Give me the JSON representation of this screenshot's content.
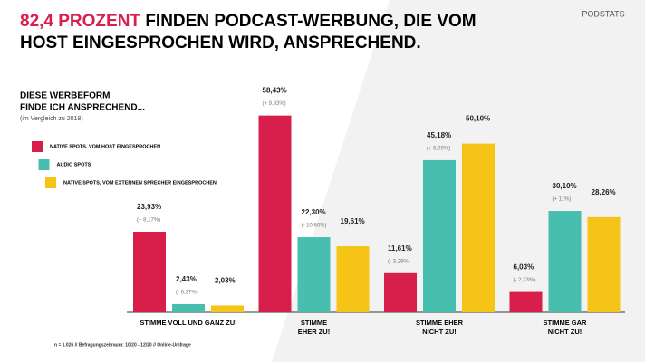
{
  "chart_data": {
    "type": "bar",
    "title_highlight": "82,4 PROZENT",
    "title": [
      "FINDEN PODCAST-WERBUNG, DIE VOM",
      "HOST EINGESPROCHEN WIRD, ANSPRECHEND."
    ],
    "subtitle": [
      "DIESE WERBEFORM",
      "FINDE ICH ANSPRECHEND..."
    ],
    "note": "(im Vergleich zu 2018)",
    "logo": "PODSTATS",
    "footer": "n = 1.026 // Befragungszeitraum: 10/20 - 12/20 // Online-Umfrage",
    "categories": [
      [
        "STIMME VOLL UND GANZ ZU!"
      ],
      [
        "STIMME",
        "EHER ZU!"
      ],
      [
        "STIMME EHER",
        "NICHT ZU!"
      ],
      [
        "STIMME GAR",
        "NICHT ZU!"
      ]
    ],
    "series": [
      {
        "name": "NATIVE SPOTS, VOM HOST EINGESPROCHEN",
        "color": "#d81f4b",
        "values": [
          23.93,
          58.43,
          11.61,
          6.03
        ],
        "value_labels": [
          "23,93%",
          "58,43%",
          "11,61%",
          "6,03%"
        ],
        "change_labels": [
          "(+ 8,17%)",
          "(+ 9,93%)",
          "(- 3,29%)",
          "(- 2,23%)"
        ]
      },
      {
        "name": "AUDIO SPOTS",
        "color": "#48bfae",
        "values": [
          2.43,
          22.3,
          45.18,
          30.1
        ],
        "value_labels": [
          "2,43%",
          "22,30%",
          "45,18%",
          "30,10%"
        ],
        "change_labels": [
          "(- 6,37%)",
          "(- 10,80%)",
          "(+ 6,09%)",
          "(+ 11%)"
        ]
      },
      {
        "name": "NATIVE SPOTS, VOM EXTERNEN SPRECHER EINGESPROCHEN",
        "color": "#f6c416",
        "values": [
          2.03,
          19.61,
          50.1,
          28.26
        ],
        "value_labels": [
          "2,03%",
          "19,61%",
          "50,10%",
          "28,26%"
        ],
        "change_labels": [
          null,
          null,
          null,
          null
        ]
      }
    ]
  }
}
